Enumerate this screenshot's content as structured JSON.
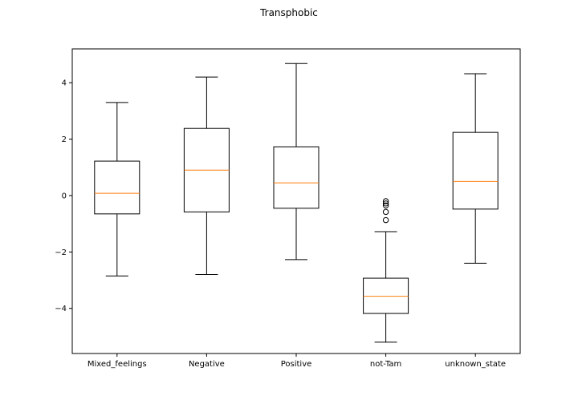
{
  "chart_data": {
    "type": "box",
    "title": "Transphobic",
    "xlabel": "",
    "ylabel": "",
    "ylim": [
      -5.6,
      5.2
    ],
    "yticks": [
      -4,
      -2,
      0,
      2,
      4
    ],
    "ytick_labels": [
      "−4",
      "−2",
      "0",
      "2",
      "4"
    ],
    "categories": [
      "Mixed_feelings",
      "Negative",
      "Positive",
      "not-Tam",
      "unknown_state"
    ],
    "boxes": [
      {
        "name": "Mixed_feelings",
        "whisker_low": -2.85,
        "q1": -0.65,
        "median": 0.08,
        "q3": 1.22,
        "whisker_high": 3.3,
        "outliers": []
      },
      {
        "name": "Negative",
        "whisker_low": -2.8,
        "q1": -0.58,
        "median": 0.9,
        "q3": 2.38,
        "whisker_high": 4.2,
        "outliers": []
      },
      {
        "name": "Positive",
        "whisker_low": -2.27,
        "q1": -0.45,
        "median": 0.45,
        "q3": 1.73,
        "whisker_high": 4.68,
        "outliers": []
      },
      {
        "name": "not-Tam",
        "whisker_low": -5.2,
        "q1": -4.18,
        "median": -3.57,
        "q3": -2.93,
        "whisker_high": -1.28,
        "outliers": [
          -0.2,
          -0.28,
          -0.35,
          -0.58,
          -0.87
        ]
      },
      {
        "name": "unknown_state",
        "whisker_low": -2.4,
        "q1": -0.48,
        "median": 0.5,
        "q3": 2.24,
        "whisker_high": 4.32,
        "outliers": []
      }
    ],
    "colors": {
      "box": "#000000",
      "median": "#ff7f0e",
      "outlier": "#000000",
      "axes": "#000000"
    },
    "grid": false
  }
}
